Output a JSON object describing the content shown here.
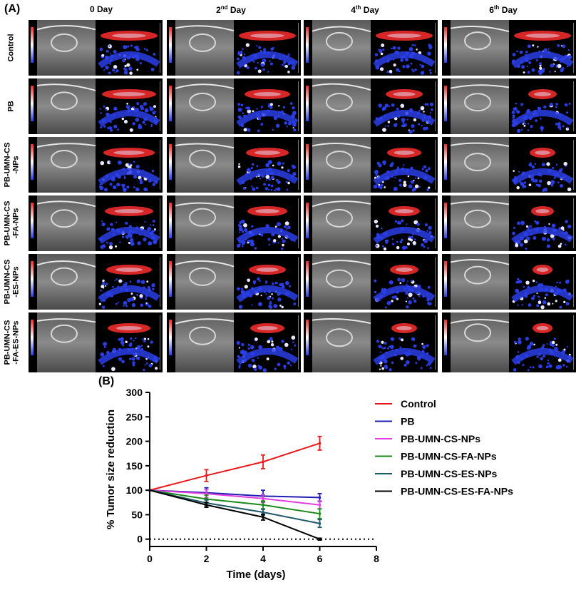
{
  "panel_a": {
    "label": "(A)",
    "columns": [
      {
        "base": "0 Day",
        "sup": ""
      },
      {
        "base": "2",
        "sup": "nd",
        "rest": " Day"
      },
      {
        "base": "4",
        "sup": "th",
        "rest": " Day"
      },
      {
        "base": "6",
        "sup": "th",
        "rest": " Day"
      }
    ],
    "rows": [
      "Control",
      "PB",
      "PB-UMN-CS\n-NPs",
      "PB-UMN-CS\n-FA-NPs",
      "PB-UMN-CS\n-ES-NPs",
      "PB-UMN-CS\n-FA-ES-NPs"
    ],
    "image_colors": {
      "gray": "#8a8a8a",
      "background": "#000000",
      "red": "#ee2a2a",
      "blue": "#2a3ee6",
      "white": "#e8e8ff"
    }
  },
  "panel_b": {
    "label": "(B)"
  },
  "chart_data": {
    "type": "line",
    "title": "",
    "xlabel": "Time (days)",
    "ylabel": "% Tumor size reduction",
    "xlim": [
      0,
      8
    ],
    "ylim": [
      -15,
      300
    ],
    "xticks": [
      0,
      2,
      4,
      6,
      8
    ],
    "yticks": [
      0,
      50,
      100,
      150,
      200,
      250,
      300
    ],
    "reference_line": {
      "y": 0,
      "style": "dotted"
    },
    "x": [
      0,
      2,
      4,
      6
    ],
    "legend_position": "right",
    "series": [
      {
        "name": "Control",
        "color": "#e8191c",
        "values": [
          100,
          130,
          158,
          196
        ],
        "errors": [
          10,
          12,
          14,
          14
        ]
      },
      {
        "name": "PB",
        "color": "#1f1fb4",
        "values": [
          100,
          95,
          88,
          85
        ],
        "errors": [
          8,
          10,
          12,
          8
        ]
      },
      {
        "name": "PB-UMN-CS-NPs",
        "color": "#e23ee2",
        "values": [
          100,
          93,
          83,
          70
        ],
        "errors": [
          6,
          8,
          8,
          8
        ]
      },
      {
        "name": "PB-UMN-CS-FA-NPs",
        "color": "#1a8a1a",
        "values": [
          100,
          82,
          70,
          52
        ],
        "errors": [
          6,
          8,
          8,
          10
        ]
      },
      {
        "name": "PB-UMN-CS-ES-NPs",
        "color": "#1f5a6a",
        "values": [
          100,
          74,
          55,
          32
        ],
        "errors": [
          6,
          6,
          6,
          8
        ]
      },
      {
        "name": "PB-UMN-CS-ES-FA-NPs",
        "color": "#000000",
        "values": [
          100,
          70,
          45,
          0
        ],
        "errors": [
          4,
          5,
          6,
          2
        ]
      }
    ]
  }
}
